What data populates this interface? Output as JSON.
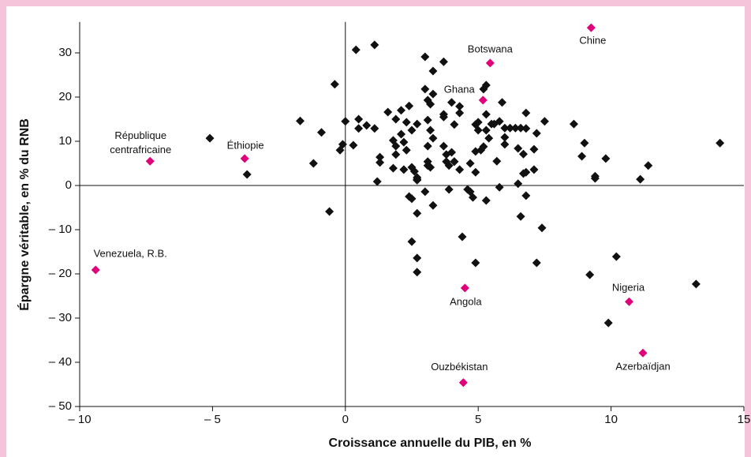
{
  "chart_data": {
    "type": "scatter",
    "xlabel": "Croissance annuelle du PIB, en %",
    "ylabel": "Épargne véritable, en % du RNB",
    "xlim": [
      -10,
      15
    ],
    "ylim": [
      -50,
      37
    ],
    "xticks": [
      {
        "value": -10,
        "label": "– 10"
      },
      {
        "value": -5,
        "label": "– 5"
      },
      0,
      5,
      10,
      15
    ],
    "yticks": [
      30,
      20,
      10,
      0,
      {
        "value": -10,
        "label": "– 10"
      },
      {
        "value": -20,
        "label": "– 20"
      },
      {
        "value": -30,
        "label": "– 30"
      },
      {
        "value": -40,
        "label": "– 40"
      },
      {
        "value": -50,
        "label": "– 50"
      }
    ],
    "marker": "diamond",
    "series": [
      {
        "color": "#111111",
        "x": [
          -5.1,
          -1.7,
          -0.9,
          -1.2,
          -3.7,
          -0.6,
          -0.4,
          -0.2,
          -0.1,
          0.0,
          0.3,
          0.4,
          0.5,
          0.5,
          0.8,
          1.1,
          1.1,
          1.2,
          1.3,
          1.3,
          1.6,
          1.8,
          1.9,
          1.9,
          1.9,
          1.8,
          2.1,
          2.1,
          2.2,
          2.2,
          2.3,
          2.3,
          2.4,
          2.5,
          2.4,
          2.5,
          2.5,
          2.6,
          2.7,
          2.7,
          2.7,
          2.5,
          2.7,
          2.7,
          2.7,
          2.7,
          3.0,
          3.0,
          3.0,
          3.1,
          3.1,
          3.1,
          3.1,
          3.1,
          3.2,
          3.2,
          3.3,
          3.3,
          3.3,
          3.2,
          3.3,
          3.7,
          3.7,
          3.7,
          3.7,
          3.8,
          3.8,
          3.9,
          3.9,
          4.0,
          4.0,
          4.1,
          4.1,
          4.1,
          4.3,
          4.3,
          4.3,
          4.4,
          4.6,
          4.7,
          4.7,
          4.8,
          4.9,
          4.9,
          4.9,
          4.9,
          5.0,
          5.0,
          5.1,
          5.2,
          5.2,
          5.3,
          5.3,
          5.3,
          5.3,
          5.4,
          5.5,
          5.6,
          5.7,
          5.8,
          5.8,
          5.9,
          6.0,
          6.0,
          6.0,
          6.2,
          6.4,
          6.5,
          6.5,
          6.6,
          6.7,
          6.6,
          6.7,
          6.8,
          6.8,
          6.8,
          6.8,
          7.1,
          7.1,
          7.2,
          7.2,
          7.4,
          7.5,
          8.6,
          8.9,
          9.0,
          9.2,
          9.8,
          9.4,
          9.4,
          9.9,
          10.2,
          11.1,
          11.4,
          13.2,
          14.1
        ],
        "values": [
          10.7,
          14.6,
          12.0,
          5.0,
          2.5,
          -5.9,
          22.9,
          8.0,
          9.3,
          14.5,
          9.1,
          30.7,
          15.0,
          12.9,
          13.6,
          31.8,
          12.9,
          0.9,
          6.4,
          5.2,
          16.6,
          10.2,
          8.9,
          15.0,
          7.0,
          3.9,
          11.6,
          17.0,
          9.8,
          3.6,
          8.0,
          14.3,
          18.0,
          12.5,
          -2.5,
          -3.0,
          4.1,
          3.2,
          13.9,
          1.8,
          1.4,
          -12.7,
          -6.3,
          -16.4,
          -19.6,
          1.2,
          -1.4,
          29.1,
          21.8,
          14.8,
          8.9,
          19.3,
          5.4,
          4.5,
          12.5,
          18.4,
          10.7,
          25.9,
          -4.5,
          4.1,
          20.7,
          28.0,
          16.1,
          15.5,
          8.9,
          7.0,
          5.4,
          4.5,
          -0.9,
          7.5,
          18.8,
          5.4,
          13.8,
          5.4,
          16.4,
          3.6,
          17.9,
          -11.6,
          -0.9,
          5.0,
          -1.4,
          -2.7,
          7.7,
          13.8,
          3.0,
          -17.5,
          12.5,
          14.3,
          8.0,
          8.8,
          21.8,
          22.7,
          16.1,
          -3.4,
          12.5,
          10.7,
          13.9,
          13.9,
          5.5,
          -0.4,
          14.5,
          18.8,
          13.0,
          10.9,
          9.3,
          13.0,
          13.0,
          8.4,
          0.4,
          13.0,
          7.1,
          -7.0,
          2.7,
          12.9,
          16.4,
          3.0,
          -2.3,
          3.6,
          8.2,
          11.8,
          -17.5,
          -9.6,
          14.5,
          13.9,
          6.6,
          9.6,
          -20.2,
          6.1,
          1.6,
          2.1,
          -31.1,
          -16.1,
          1.4,
          4.5,
          -22.3,
          9.6
        ]
      },
      {
        "color": "#e0007a",
        "labels": [
          "Chine",
          "Botswana",
          "Ghana",
          "République centrafricaine",
          "Éthiopie",
          "Venezuela, R.B.",
          "Angola",
          "Nigeria",
          "Azerbaïdjan",
          "Ouzbékistan"
        ],
        "x": [
          9.25,
          5.45,
          5.18,
          -7.35,
          -3.79,
          -9.4,
          4.5,
          10.68,
          11.2,
          4.44
        ],
        "values": [
          35.7,
          27.7,
          19.3,
          5.5,
          6.1,
          -19.1,
          -23.2,
          -26.3,
          -37.9,
          -44.6
        ]
      }
    ]
  }
}
